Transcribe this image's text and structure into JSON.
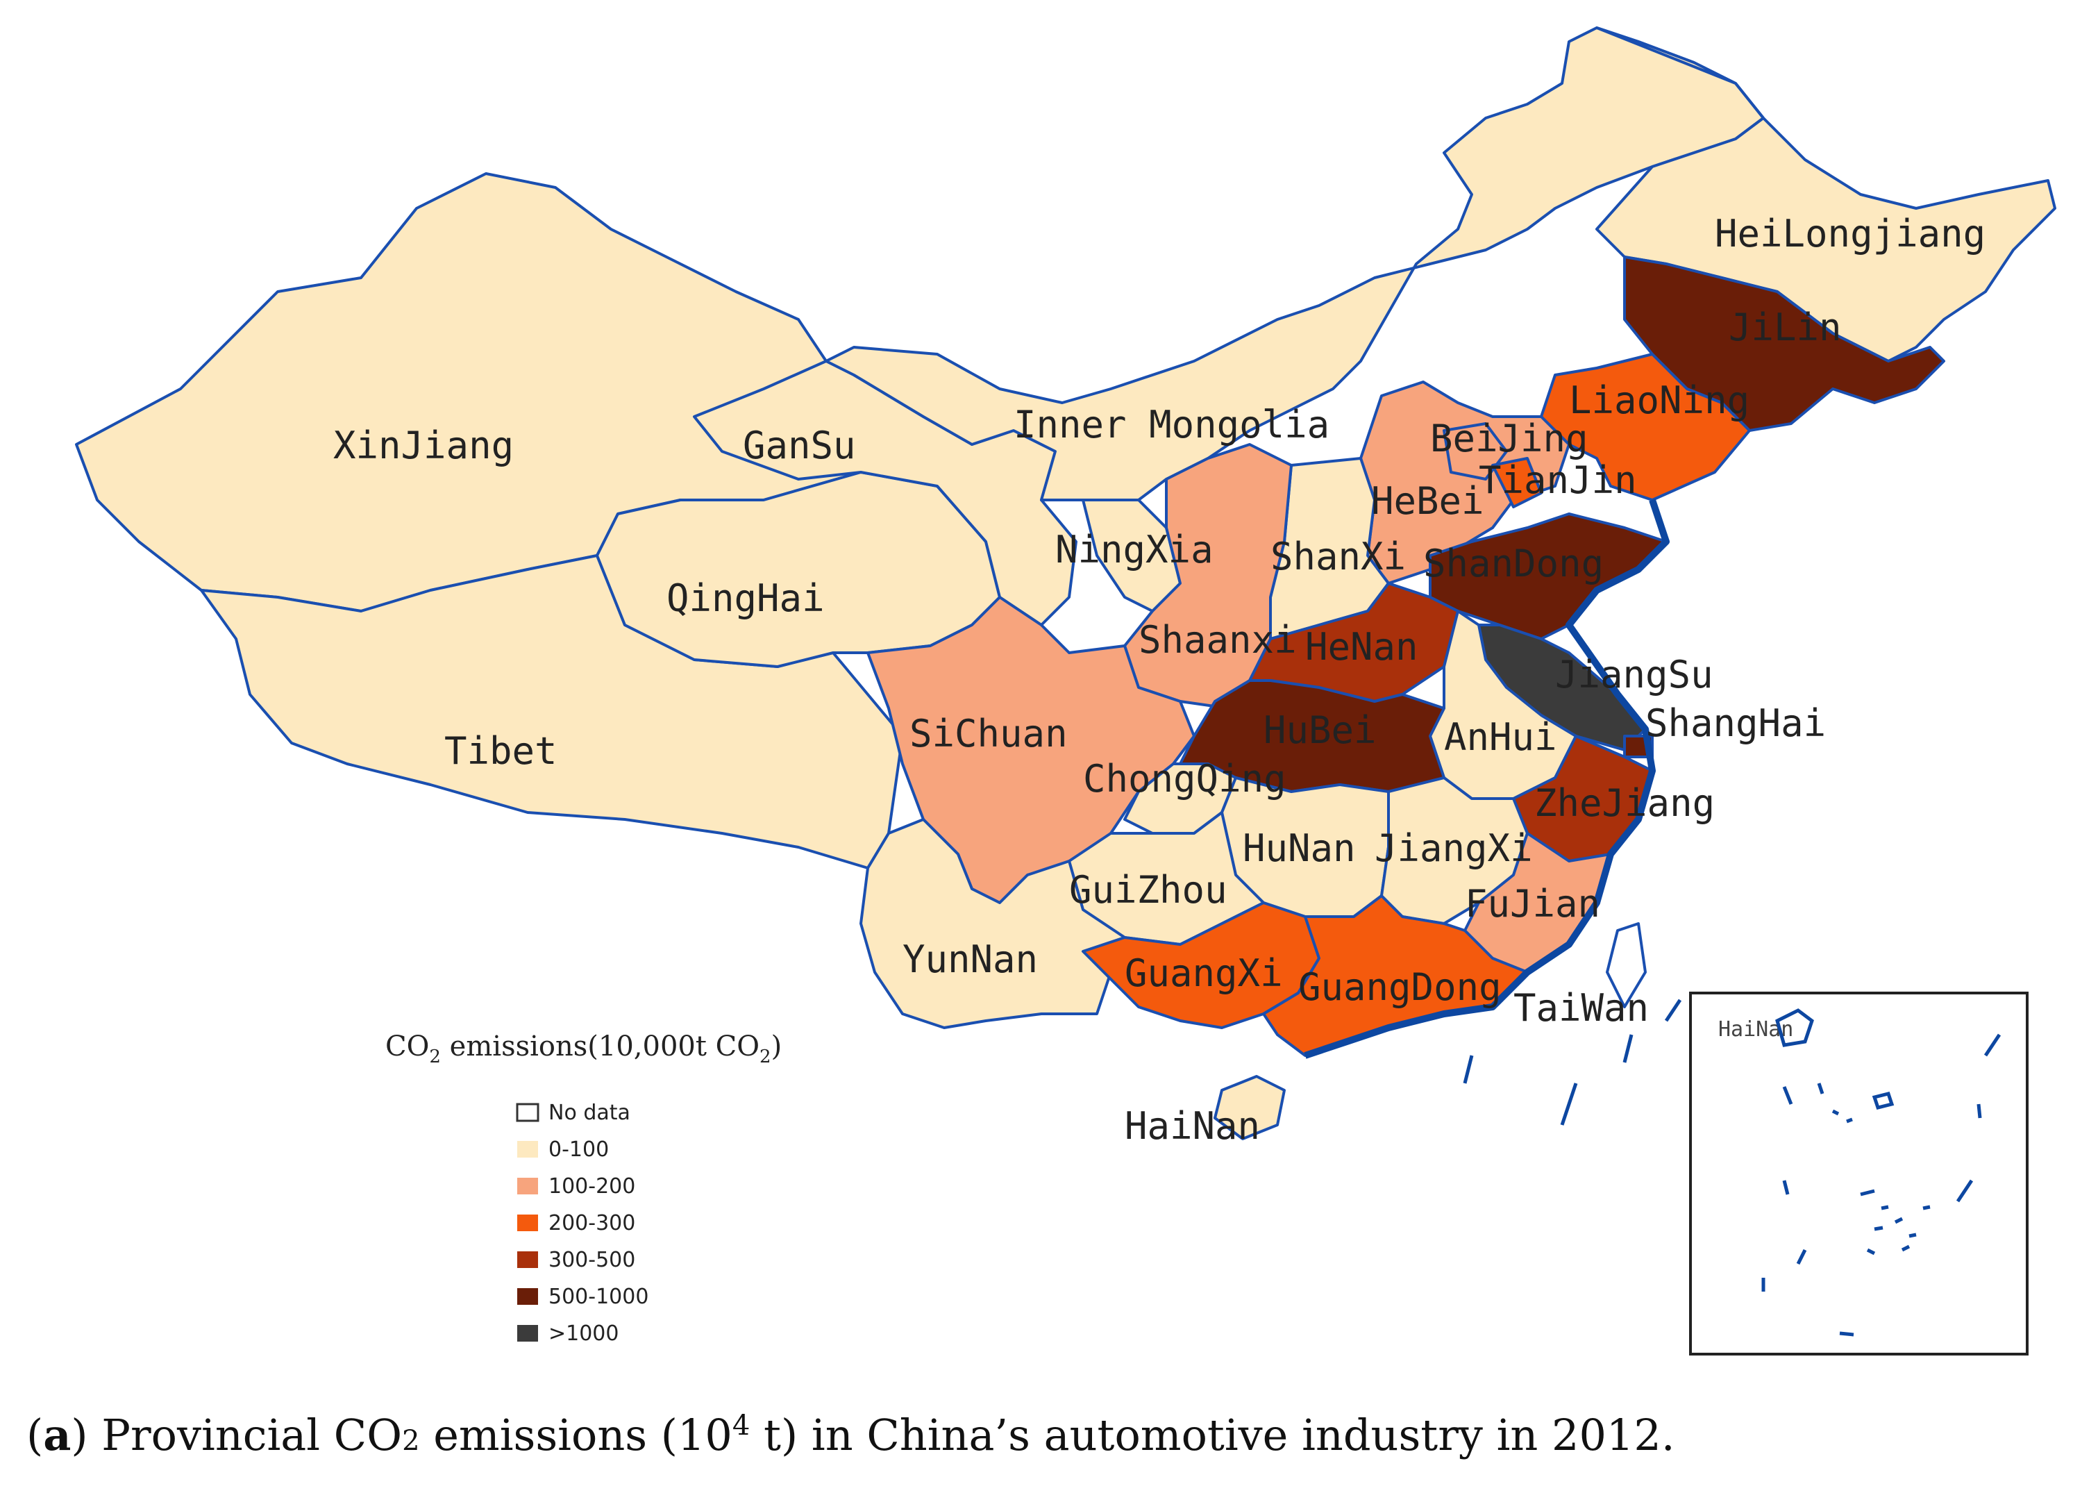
{
  "map": {
    "legend": {
      "title_main": "CO",
      "title_sub": "2",
      "title_rest": " emissions(10,000t CO",
      "title_sub2": "2",
      "title_end": ")",
      "classes": [
        {
          "label": "No data",
          "color": "#ffffff"
        },
        {
          "label": "0-100",
          "color": "#fde9c0"
        },
        {
          "label": "100-200",
          "color": "#f7a47d"
        },
        {
          "label": "200-300",
          "color": "#f45a0d"
        },
        {
          "label": "300-500",
          "color": "#a9300b"
        },
        {
          "label": "500-1000",
          "color": "#6a1e08"
        },
        {
          "label": ">1000",
          "color": "#3b3b3b"
        }
      ]
    },
    "regions": [
      {
        "name": "XinJiang",
        "class": "0-100"
      },
      {
        "name": "Tibet",
        "class": "0-100"
      },
      {
        "name": "QingHai",
        "class": "0-100"
      },
      {
        "name": "GanSu",
        "class": "0-100"
      },
      {
        "name": "Inner Mongolia",
        "class": "0-100"
      },
      {
        "name": "HeiLongjiang",
        "class": "0-100"
      },
      {
        "name": "JiLin",
        "class": "500-1000"
      },
      {
        "name": "LiaoNing",
        "class": "200-300"
      },
      {
        "name": "BeiJing",
        "class": "100-200"
      },
      {
        "name": "TianJin",
        "class": "200-300"
      },
      {
        "name": "HeBei",
        "class": "100-200"
      },
      {
        "name": "ShanXi",
        "class": "0-100"
      },
      {
        "name": "NingXia",
        "class": "0-100"
      },
      {
        "name": "Shaanxi",
        "class": "100-200"
      },
      {
        "name": "ShanDong",
        "class": "500-1000"
      },
      {
        "name": "HeNan",
        "class": "300-500"
      },
      {
        "name": "JiangSu",
        "class": ">1000"
      },
      {
        "name": "ShangHai",
        "class": "500-1000"
      },
      {
        "name": "AnHui",
        "class": "0-100"
      },
      {
        "name": "HuBei",
        "class": "500-1000"
      },
      {
        "name": "SiChuan",
        "class": "100-200"
      },
      {
        "name": "ChongQing",
        "class": "0-100"
      },
      {
        "name": "ZheJiang",
        "class": "300-500"
      },
      {
        "name": "HuNan",
        "class": "0-100"
      },
      {
        "name": "JiangXi",
        "class": "0-100"
      },
      {
        "name": "GuiZhou",
        "class": "0-100"
      },
      {
        "name": "FuJian",
        "class": "100-200"
      },
      {
        "name": "YunNan",
        "class": "0-100"
      },
      {
        "name": "GuangXi",
        "class": "200-300"
      },
      {
        "name": "GuangDong",
        "class": "200-300"
      },
      {
        "name": "TaiWan",
        "class": "No data"
      },
      {
        "name": "HaiNan",
        "class": "0-100"
      }
    ],
    "inset_label": "HaiNan",
    "colors": {
      "border": "#1a4fb0",
      "coast": "#0d47a1"
    }
  },
  "caption": {
    "open": "(",
    "letter": "a",
    "text1": ") Provincial CO",
    "sub": "2",
    "text2": " emissions (10",
    "sup": "4",
    "text3": " t) in China’s automotive industry in 2012."
  }
}
